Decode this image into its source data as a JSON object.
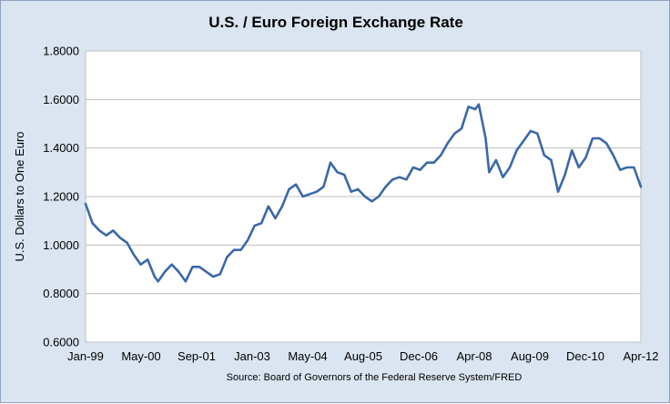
{
  "chart_data": {
    "type": "line",
    "title": "U.S. / Euro Foreign Exchange Rate",
    "ylabel": "U.S. Dollars to One Euro",
    "xlabel": "",
    "source": "Source: Board of Governors of the Federal Reserve System/FRED",
    "ylim": [
      0.6,
      1.8
    ],
    "yticks": [
      "0.6000",
      "0.8000",
      "1.0000",
      "1.2000",
      "1.4000",
      "1.6000",
      "1.8000"
    ],
    "xlim": [
      "1999-01",
      "2012-06"
    ],
    "xticks": [
      "Jan-99",
      "May-00",
      "Sep-01",
      "Jan-03",
      "May-04",
      "Aug-05",
      "Dec-06",
      "Apr-08",
      "Aug-09",
      "Dec-10",
      "Apr-12"
    ],
    "grid": "horizontal",
    "legend": "none",
    "colors": {
      "line": "#3b68a9",
      "background": "#dbe5f1",
      "plot": "#ffffff",
      "grid": "#bfbfbf"
    },
    "series": [
      {
        "x": [
          "1999-01",
          "1999-03",
          "1999-05",
          "1999-07",
          "1999-09",
          "1999-11",
          "2000-01",
          "2000-03",
          "2000-05",
          "2000-07",
          "2000-09",
          "2000-10",
          "2000-12",
          "2001-02",
          "2001-04",
          "2001-06",
          "2001-08",
          "2001-10",
          "2001-12",
          "2002-02",
          "2002-04",
          "2002-06",
          "2002-08",
          "2002-10",
          "2002-12",
          "2003-02",
          "2003-04",
          "2003-06",
          "2003-08",
          "2003-10",
          "2003-12",
          "2004-02",
          "2004-04",
          "2004-06",
          "2004-08",
          "2004-10",
          "2004-12",
          "2005-02",
          "2005-04",
          "2005-06",
          "2005-08",
          "2005-10",
          "2005-12",
          "2006-02",
          "2006-04",
          "2006-06",
          "2006-08",
          "2006-10",
          "2006-12",
          "2007-02",
          "2007-04",
          "2007-06",
          "2007-08",
          "2007-10",
          "2007-12",
          "2008-02",
          "2008-04",
          "2008-06",
          "2008-07",
          "2008-09",
          "2008-10",
          "2008-12",
          "2009-02",
          "2009-04",
          "2009-06",
          "2009-08",
          "2009-10",
          "2009-12",
          "2010-02",
          "2010-04",
          "2010-06",
          "2010-08",
          "2010-10",
          "2010-12",
          "2011-02",
          "2011-04",
          "2011-06",
          "2011-08",
          "2011-10",
          "2011-12",
          "2012-02",
          "2012-04",
          "2012-06"
        ],
        "values": [
          1.17,
          1.09,
          1.06,
          1.04,
          1.06,
          1.03,
          1.01,
          0.96,
          0.92,
          0.94,
          0.87,
          0.85,
          0.89,
          0.92,
          0.89,
          0.85,
          0.91,
          0.91,
          0.89,
          0.87,
          0.88,
          0.95,
          0.98,
          0.98,
          1.02,
          1.08,
          1.09,
          1.16,
          1.11,
          1.16,
          1.23,
          1.25,
          1.2,
          1.21,
          1.22,
          1.24,
          1.34,
          1.3,
          1.29,
          1.22,
          1.23,
          1.2,
          1.18,
          1.2,
          1.24,
          1.27,
          1.28,
          1.27,
          1.32,
          1.31,
          1.34,
          1.34,
          1.37,
          1.42,
          1.46,
          1.48,
          1.57,
          1.56,
          1.58,
          1.44,
          1.3,
          1.35,
          1.28,
          1.32,
          1.39,
          1.43,
          1.47,
          1.46,
          1.37,
          1.35,
          1.22,
          1.29,
          1.39,
          1.32,
          1.36,
          1.44,
          1.44,
          1.42,
          1.37,
          1.31,
          1.32,
          1.32,
          1.24
        ]
      }
    ]
  }
}
